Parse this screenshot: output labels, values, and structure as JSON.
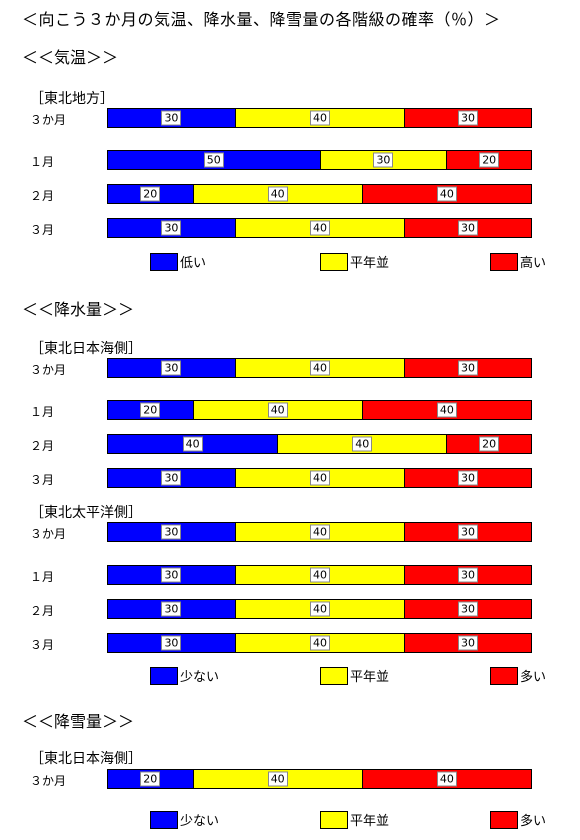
{
  "title": "＜向こう３か月の気温、降水量、降雪量の各階級の確率（％）＞",
  "colors": {
    "low": "#0000ff",
    "normal": "#ffff00",
    "high": "#ff0000"
  },
  "sections": [
    {
      "heading": "＜＜気温＞＞",
      "groups": [
        {
          "region": "［東北地方］",
          "rows": [
            {
              "label": "３か月",
              "values": [
                30,
                40,
                30
              ]
            },
            {
              "label": "１月",
              "values": [
                50,
                30,
                20
              ]
            },
            {
              "label": "２月",
              "values": [
                20,
                40,
                40
              ]
            },
            {
              "label": "３月",
              "values": [
                30,
                40,
                30
              ]
            }
          ]
        }
      ],
      "legend": [
        "低い",
        "平年並",
        "高い"
      ]
    },
    {
      "heading": "＜＜降水量＞＞",
      "groups": [
        {
          "region": "［東北日本海側］",
          "rows": [
            {
              "label": "３か月",
              "values": [
                30,
                40,
                30
              ]
            },
            {
              "label": "１月",
              "values": [
                20,
                40,
                40
              ]
            },
            {
              "label": "２月",
              "values": [
                40,
                40,
                20
              ]
            },
            {
              "label": "３月",
              "values": [
                30,
                40,
                30
              ]
            }
          ]
        },
        {
          "region": "［東北太平洋側］",
          "rows": [
            {
              "label": "３か月",
              "values": [
                30,
                40,
                30
              ]
            },
            {
              "label": "１月",
              "values": [
                30,
                40,
                30
              ]
            },
            {
              "label": "２月",
              "values": [
                30,
                40,
                30
              ]
            },
            {
              "label": "３月",
              "values": [
                30,
                40,
                30
              ]
            }
          ]
        }
      ],
      "legend": [
        "少ない",
        "平年並",
        "多い"
      ]
    },
    {
      "heading": "＜＜降雪量＞＞",
      "groups": [
        {
          "region": "［東北日本海側］",
          "rows": [
            {
              "label": "３か月",
              "values": [
                20,
                40,
                40
              ]
            }
          ]
        }
      ],
      "legend": [
        "少ない",
        "平年並",
        "多い"
      ]
    }
  ]
}
